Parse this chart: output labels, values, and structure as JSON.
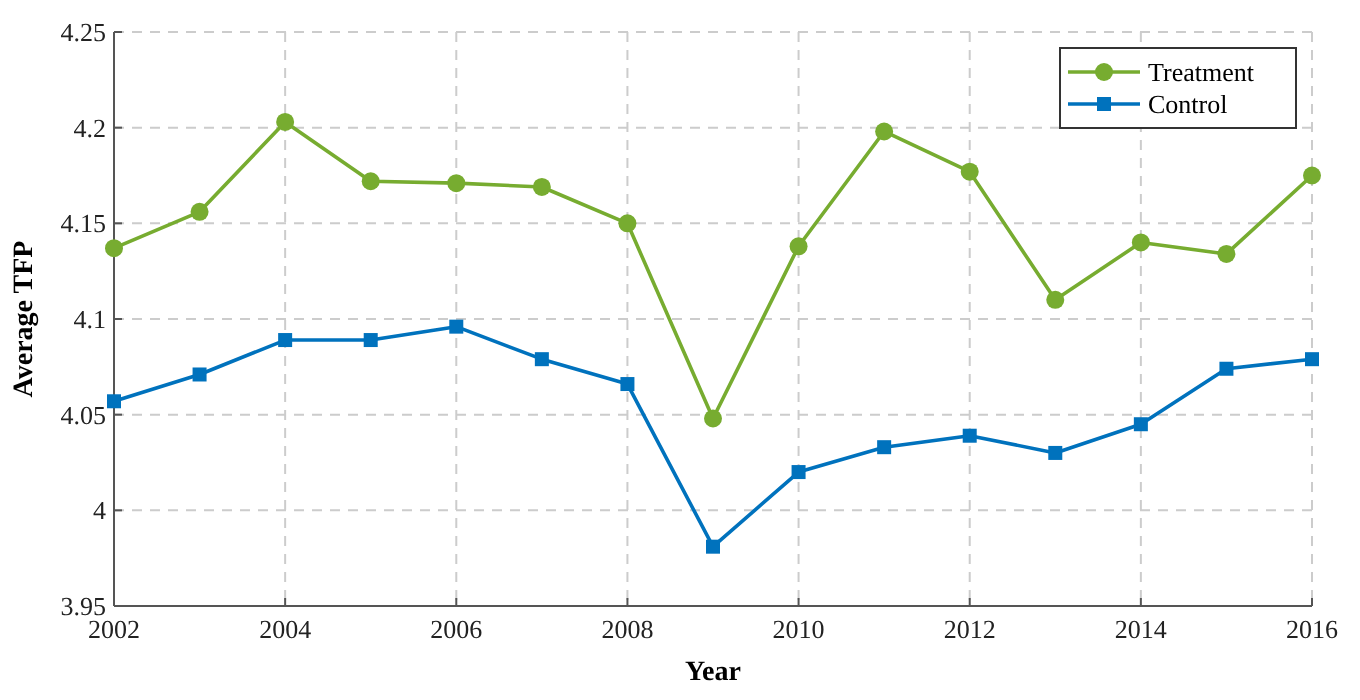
{
  "chart_data": {
    "type": "line",
    "xlabel": "Year",
    "ylabel": "Average TFP",
    "x": [
      2002,
      2003,
      2004,
      2005,
      2006,
      2007,
      2008,
      2009,
      2010,
      2011,
      2012,
      2013,
      2014,
      2015,
      2016
    ],
    "series": [
      {
        "name": "Treatment",
        "color": "#77ac30",
        "marker": "circle",
        "values": [
          4.137,
          4.156,
          4.203,
          4.172,
          4.171,
          4.169,
          4.15,
          4.048,
          4.138,
          4.198,
          4.177,
          4.11,
          4.14,
          4.134,
          4.175
        ]
      },
      {
        "name": "Control",
        "color": "#0072bd",
        "marker": "square",
        "values": [
          4.057,
          4.071,
          4.089,
          4.089,
          4.096,
          4.079,
          4.066,
          3.981,
          4.02,
          4.033,
          4.039,
          4.03,
          4.045,
          4.074,
          4.079
        ]
      }
    ],
    "xlim": [
      2002,
      2016
    ],
    "xticks": [
      2002,
      2004,
      2006,
      2008,
      2010,
      2012,
      2014,
      2016
    ],
    "ylim": [
      3.95,
      4.25
    ],
    "yticks": [
      3.95,
      4,
      4.05,
      4.1,
      4.15,
      4.2,
      4.25
    ],
    "grid": true,
    "legend": "top right",
    "line_style": "solid"
  }
}
